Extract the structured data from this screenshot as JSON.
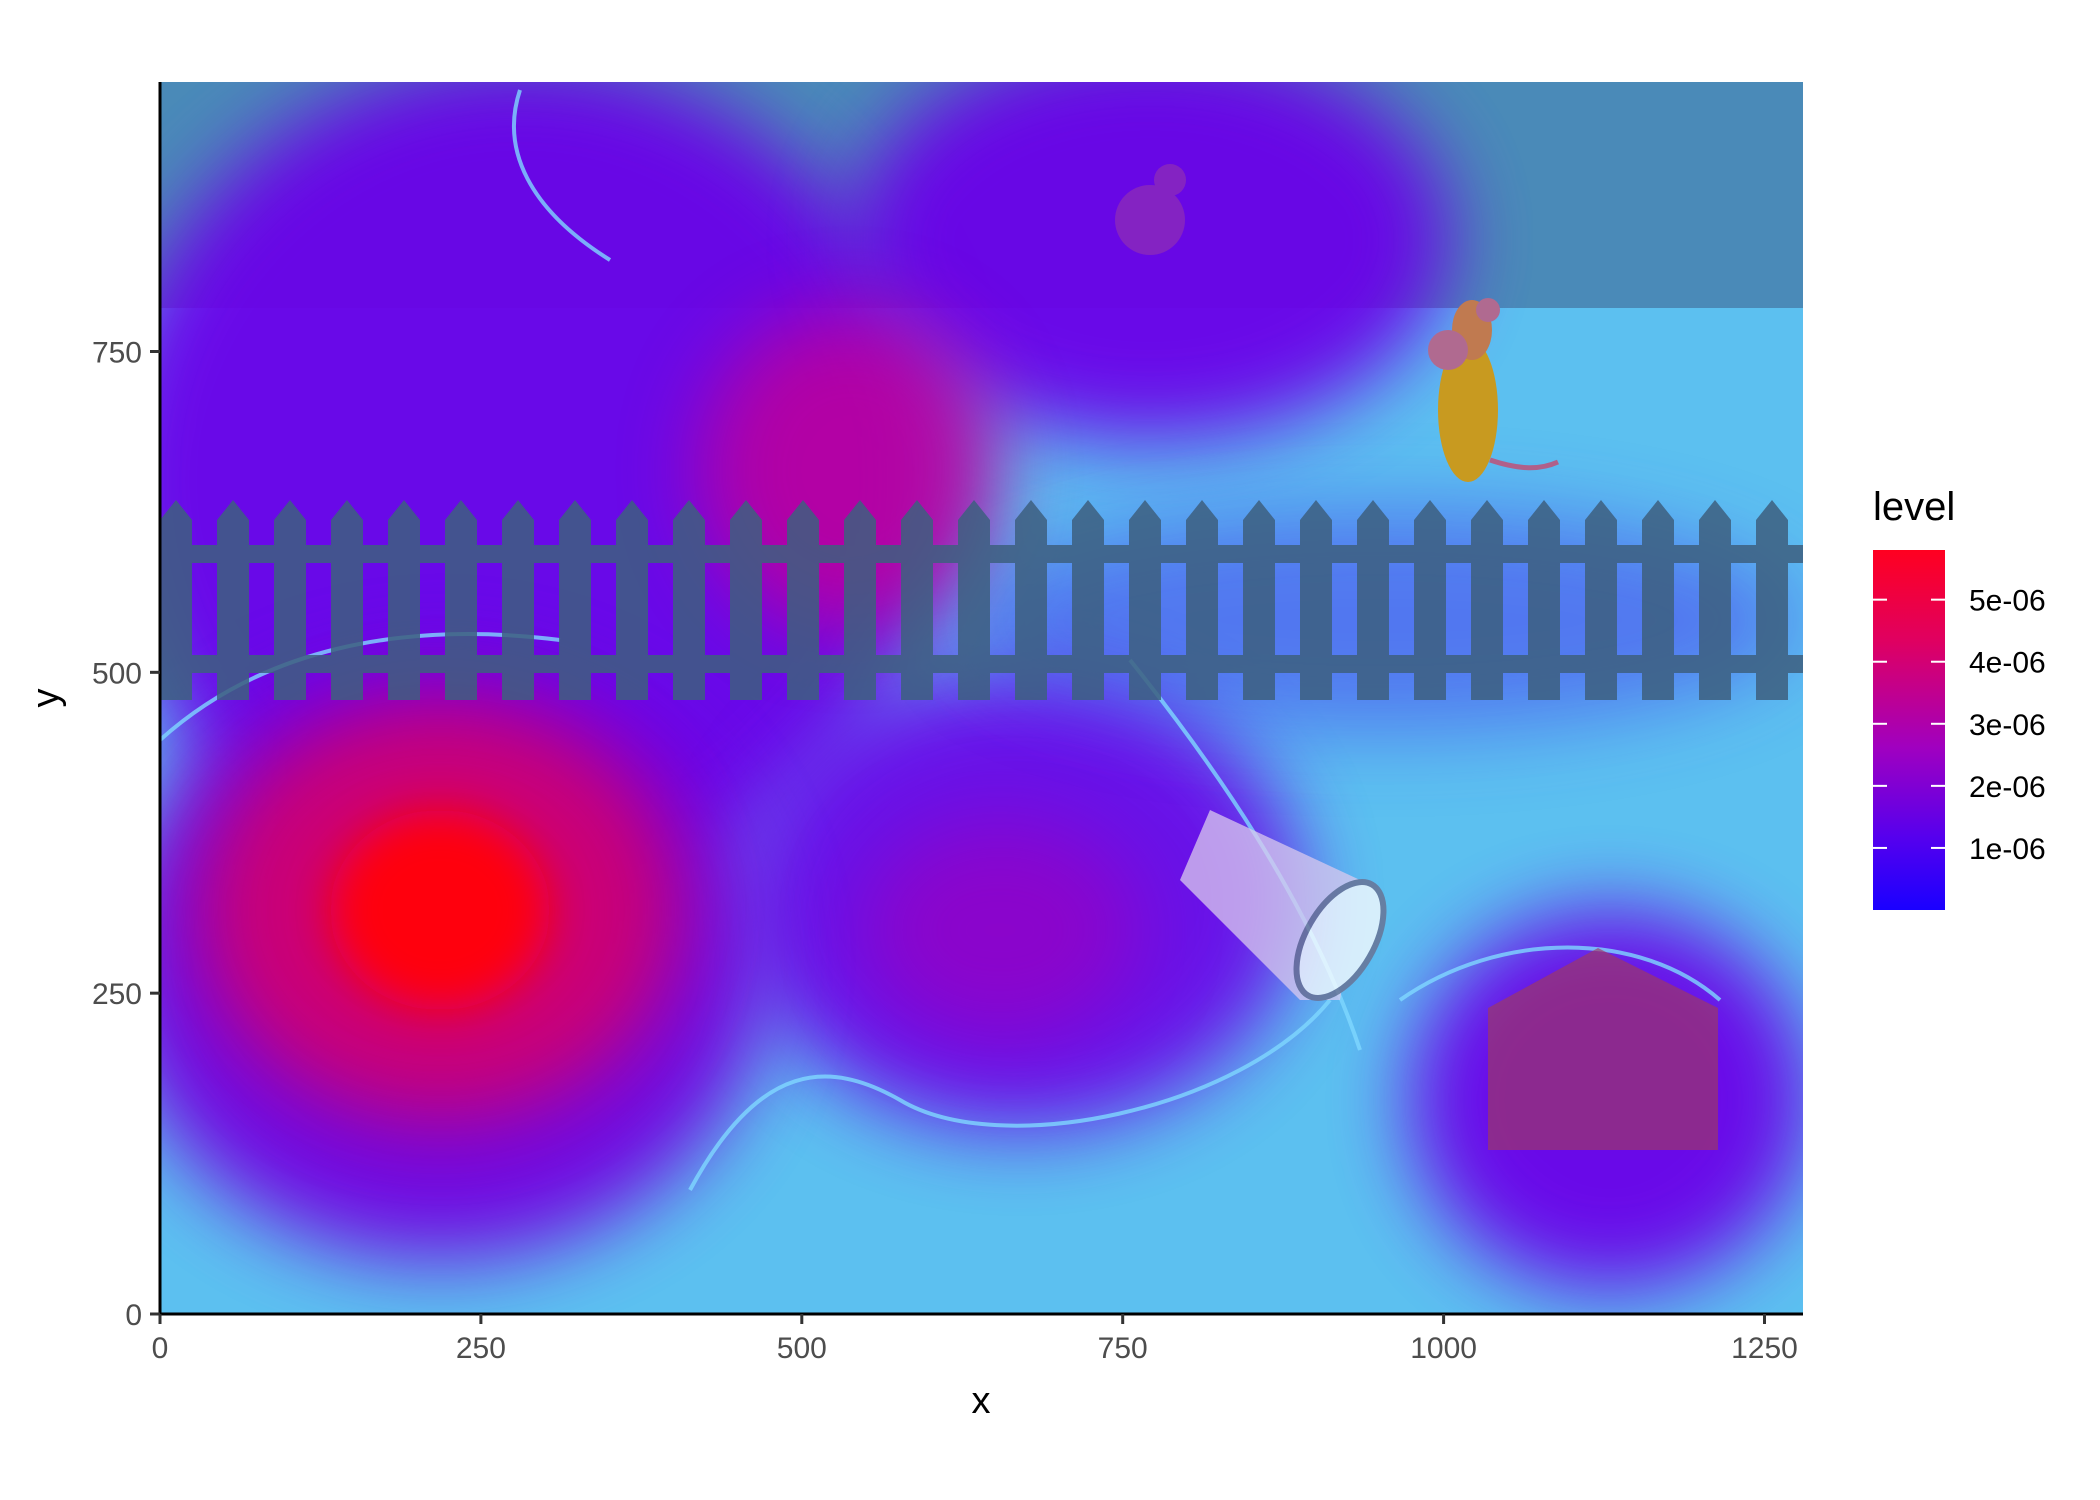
{
  "chart_data": {
    "type": "heatmap",
    "title": "",
    "xlabel": "x",
    "ylabel": "y",
    "xlim": [
      0,
      1280
    ],
    "ylim": [
      0,
      960
    ],
    "x_ticks": [
      0,
      250,
      500,
      750,
      1000,
      1250
    ],
    "x_tick_labels": [
      "0",
      "250",
      "500",
      "750",
      "1000",
      "1250"
    ],
    "y_ticks": [
      0,
      250,
      500,
      750
    ],
    "y_tick_labels": [
      "0",
      "250",
      "500",
      "750"
    ],
    "grid": false,
    "legend": {
      "title": "level",
      "position": "right",
      "range": [
        0,
        5.8e-06
      ],
      "breaks": [
        1e-06,
        2e-06,
        3e-06,
        4e-06,
        5e-06
      ],
      "labels": [
        "1e-06",
        "2e-06",
        "3e-06",
        "4e-06",
        "5e-06"
      ],
      "low_color": "#1a00ff",
      "mid_color": "#a000c0",
      "high_color": "#ff0000"
    },
    "hotspots": [
      {
        "x": 230,
        "y": 300,
        "level": 5.8e-06
      },
      {
        "x": 540,
        "y": 665,
        "level": 2.8e-06
      },
      {
        "x": 730,
        "y": 300,
        "level": 1.6e-06
      },
      {
        "x": 310,
        "y": 680,
        "level": 1e-06
      },
      {
        "x": 900,
        "y": 820,
        "level": 1e-06
      },
      {
        "x": 1130,
        "y": 150,
        "level": 9e-07
      },
      {
        "x": 450,
        "y": 880,
        "level": 1.1e-06
      }
    ],
    "background": {
      "floor_color": "#5cc0f0",
      "wall_color": "#4a8ab8",
      "fence_color": "#3d6080",
      "box_color": "#a03a60"
    }
  }
}
